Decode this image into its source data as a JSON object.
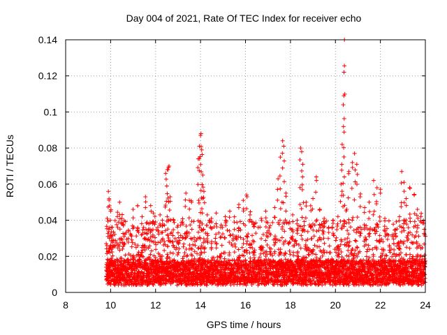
{
  "chart_data": {
    "type": "scatter",
    "title": "Day 004 of 2021, Rate Of TEC Index for receiver echo",
    "xlabel": "GPS time / hours",
    "ylabel": "ROTI / TECUs",
    "xlim": [
      8,
      24
    ],
    "ylim": [
      0,
      0.14
    ],
    "x_ticks": [
      8,
      10,
      12,
      14,
      16,
      18,
      20,
      22,
      24
    ],
    "x_tick_labels": [
      "8",
      "10",
      "12",
      "14",
      "16",
      "18",
      "20",
      "22",
      "24"
    ],
    "y_ticks": [
      0,
      0.02,
      0.04,
      0.06,
      0.08,
      0.1,
      0.12,
      0.14
    ],
    "y_tick_labels": [
      "0",
      "0.02",
      "0.04",
      "0.06",
      "0.08",
      "0.1",
      "0.12",
      "0.14"
    ],
    "grid": true,
    "marker": "+",
    "color": "#ff0000",
    "x_range_of_data": [
      9.8,
      24.0
    ],
    "series": [
      {
        "name": "ROTI",
        "points": [
          [
            9.85,
            0.041
          ],
          [
            9.9,
            0.056
          ],
          [
            9.95,
            0.048
          ],
          [
            10.0,
            0.045
          ],
          [
            10.05,
            0.036
          ],
          [
            10.1,
            0.029
          ],
          [
            10.2,
            0.026
          ],
          [
            10.3,
            0.042
          ],
          [
            10.4,
            0.05
          ],
          [
            10.5,
            0.041
          ],
          [
            10.6,
            0.031
          ],
          [
            10.8,
            0.034
          ],
          [
            11.0,
            0.046
          ],
          [
            11.2,
            0.048
          ],
          [
            11.4,
            0.042
          ],
          [
            11.55,
            0.053
          ],
          [
            11.7,
            0.038
          ],
          [
            11.8,
            0.045
          ],
          [
            11.9,
            0.044
          ],
          [
            12.0,
            0.039
          ],
          [
            12.1,
            0.036
          ],
          [
            12.2,
            0.043
          ],
          [
            12.3,
            0.04
          ],
          [
            12.45,
            0.066
          ],
          [
            12.5,
            0.059
          ],
          [
            12.55,
            0.068
          ],
          [
            12.6,
            0.07
          ],
          [
            12.65,
            0.053
          ],
          [
            12.8,
            0.04
          ],
          [
            13.0,
            0.033
          ],
          [
            13.2,
            0.039
          ],
          [
            13.35,
            0.055
          ],
          [
            13.5,
            0.051
          ],
          [
            13.6,
            0.05
          ],
          [
            13.9,
            0.074
          ],
          [
            13.95,
            0.081
          ],
          [
            14.0,
            0.087
          ],
          [
            14.02,
            0.088
          ],
          [
            14.05,
            0.079
          ],
          [
            14.1,
            0.065
          ],
          [
            14.15,
            0.056
          ],
          [
            14.3,
            0.043
          ],
          [
            14.5,
            0.039
          ],
          [
            14.7,
            0.044
          ],
          [
            14.9,
            0.036
          ],
          [
            15.1,
            0.042
          ],
          [
            15.3,
            0.045
          ],
          [
            15.5,
            0.039
          ],
          [
            15.7,
            0.047
          ],
          [
            15.9,
            0.051
          ],
          [
            16.05,
            0.054
          ],
          [
            16.2,
            0.043
          ],
          [
            16.4,
            0.038
          ],
          [
            16.7,
            0.041
          ],
          [
            16.9,
            0.045
          ],
          [
            17.1,
            0.037
          ],
          [
            17.3,
            0.047
          ],
          [
            17.45,
            0.063
          ],
          [
            17.55,
            0.075
          ],
          [
            17.65,
            0.084
          ],
          [
            17.7,
            0.081
          ],
          [
            17.8,
            0.055
          ],
          [
            17.95,
            0.039
          ],
          [
            18.1,
            0.043
          ],
          [
            18.3,
            0.04
          ],
          [
            18.45,
            0.08
          ],
          [
            18.5,
            0.078
          ],
          [
            18.55,
            0.071
          ],
          [
            18.7,
            0.05
          ],
          [
            18.9,
            0.048
          ],
          [
            19.0,
            0.052
          ],
          [
            19.15,
            0.064
          ],
          [
            19.3,
            0.046
          ],
          [
            19.5,
            0.041
          ],
          [
            19.7,
            0.036
          ],
          [
            19.9,
            0.04
          ],
          [
            20.1,
            0.038
          ],
          [
            20.25,
            0.06
          ],
          [
            20.3,
            0.082
          ],
          [
            20.35,
            0.104
          ],
          [
            20.38,
            0.122
          ],
          [
            20.4,
            0.14
          ],
          [
            20.5,
            0.046
          ],
          [
            20.6,
            0.067
          ],
          [
            20.75,
            0.072
          ],
          [
            20.85,
            0.077
          ],
          [
            20.95,
            0.071
          ],
          [
            21.1,
            0.053
          ],
          [
            21.3,
            0.047
          ],
          [
            21.5,
            0.05
          ],
          [
            21.7,
            0.062
          ],
          [
            21.85,
            0.058
          ],
          [
            22.0,
            0.055
          ],
          [
            22.2,
            0.041
          ],
          [
            22.4,
            0.026
          ],
          [
            22.6,
            0.021
          ],
          [
            22.85,
            0.042
          ],
          [
            22.95,
            0.067
          ],
          [
            23.05,
            0.061
          ],
          [
            23.15,
            0.052
          ],
          [
            23.3,
            0.058
          ],
          [
            23.5,
            0.054
          ],
          [
            23.65,
            0.046
          ],
          [
            23.8,
            0.042
          ],
          [
            23.95,
            0.035
          ]
        ]
      }
    ]
  }
}
